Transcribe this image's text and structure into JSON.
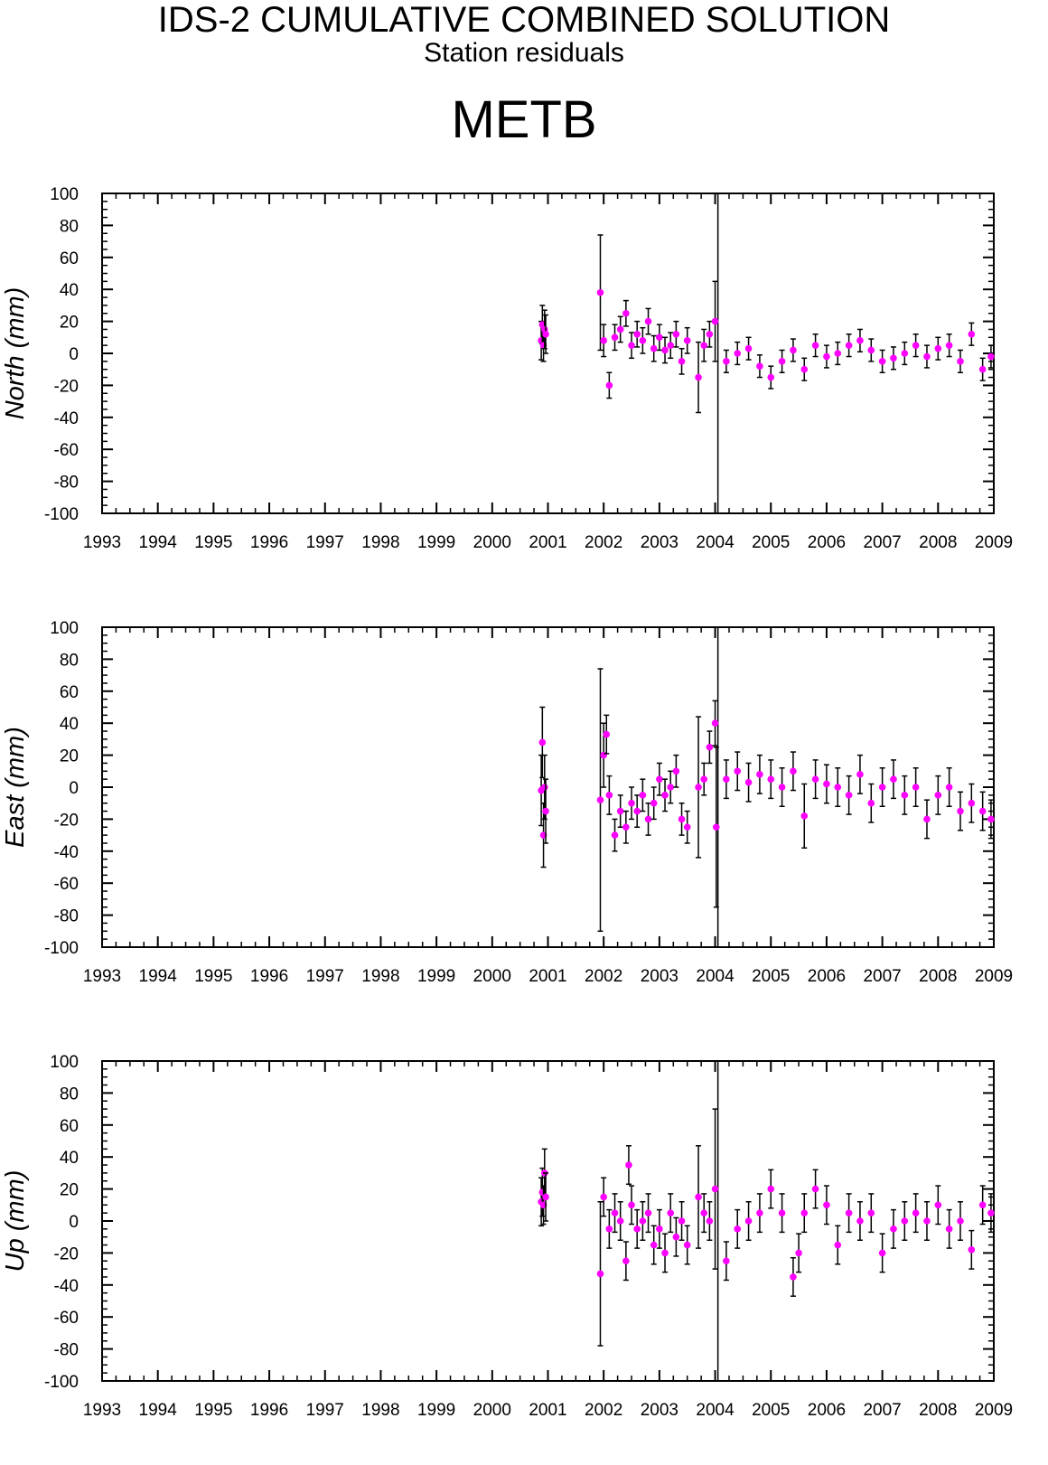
{
  "header": {
    "title": "IDS-2 CUMULATIVE COMBINED SOLUTION",
    "subtitle": "Station residuals",
    "station": "METB"
  },
  "colors": {
    "points": "#ff00ff",
    "errorbars": "#000000",
    "axes": "#000000"
  },
  "chart_data": [
    {
      "type": "scatter",
      "ylabel": "North (mm)",
      "xlim": [
        1993,
        2009
      ],
      "ylim": [
        -100,
        100
      ],
      "x_ticks": [
        1993,
        1994,
        1995,
        1996,
        1997,
        1998,
        1999,
        2000,
        2001,
        2002,
        2003,
        2004,
        2005,
        2006,
        2007,
        2008,
        2009
      ],
      "y_ticks": [
        100,
        80,
        60,
        40,
        20,
        0,
        -20,
        -40,
        -60,
        -80,
        -100
      ],
      "discontinuity_x": 2004.05,
      "error_bars": true,
      "grid": false,
      "series": [
        {
          "x": [
            2000.88,
            2000.9,
            2000.92,
            2000.94,
            2000.96,
            2001.94,
            2002.0,
            2002.1,
            2002.2,
            2002.3,
            2002.4,
            2002.5,
            2002.6,
            2002.7,
            2002.8,
            2002.9,
            2003.0,
            2003.1,
            2003.2,
            2003.3,
            2003.4,
            2003.5,
            2003.7,
            2003.8,
            2003.9,
            2004.0,
            2004.2,
            2004.4,
            2004.6,
            2004.8,
            2005.0,
            2005.2,
            2005.4,
            2005.6,
            2005.8,
            2006.0,
            2006.2,
            2006.4,
            2006.6,
            2006.8,
            2007.0,
            2007.2,
            2007.4,
            2007.6,
            2007.8,
            2008.0,
            2008.2,
            2008.4,
            2008.6,
            2008.8,
            2008.95
          ],
          "y": [
            8,
            18,
            5,
            15,
            12,
            38,
            8,
            -20,
            10,
            15,
            25,
            5,
            12,
            8,
            20,
            3,
            10,
            2,
            5,
            12,
            -5,
            8,
            -15,
            5,
            12,
            20,
            -5,
            0,
            3,
            -8,
            -15,
            -5,
            2,
            -10,
            5,
            -2,
            0,
            5,
            8,
            2,
            -5,
            -3,
            0,
            5,
            -2,
            3,
            5,
            -5,
            12,
            -10,
            -2
          ],
          "err": [
            12,
            12,
            10,
            12,
            12,
            36,
            10,
            8,
            8,
            8,
            8,
            8,
            8,
            8,
            8,
            8,
            8,
            8,
            8,
            8,
            8,
            8,
            22,
            10,
            8,
            25,
            7,
            7,
            7,
            7,
            7,
            7,
            7,
            7,
            7,
            7,
            7,
            7,
            7,
            7,
            7,
            7,
            7,
            7,
            7,
            7,
            7,
            7,
            7,
            7,
            7
          ]
        }
      ]
    },
    {
      "type": "scatter",
      "ylabel": "East (mm)",
      "xlim": [
        1993,
        2009
      ],
      "ylim": [
        -100,
        100
      ],
      "x_ticks": [
        1993,
        1994,
        1995,
        1996,
        1997,
        1998,
        1999,
        2000,
        2001,
        2002,
        2003,
        2004,
        2005,
        2006,
        2007,
        2008,
        2009
      ],
      "y_ticks": [
        100,
        80,
        60,
        40,
        20,
        0,
        -20,
        -40,
        -60,
        -80,
        -100
      ],
      "discontinuity_x": 2004.05,
      "error_bars": true,
      "grid": false,
      "series": [
        {
          "x": [
            2000.88,
            2000.9,
            2000.92,
            2000.94,
            2000.96,
            2001.94,
            2002.0,
            2002.05,
            2002.1,
            2002.2,
            2002.3,
            2002.4,
            2002.5,
            2002.6,
            2002.7,
            2002.8,
            2002.9,
            2003.0,
            2003.1,
            2003.2,
            2003.3,
            2003.4,
            2003.5,
            2003.7,
            2003.8,
            2003.9,
            2004.0,
            2004.02,
            2004.2,
            2004.4,
            2004.6,
            2004.8,
            2005.0,
            2005.2,
            2005.4,
            2005.6,
            2005.8,
            2006.0,
            2006.2,
            2006.4,
            2006.6,
            2006.8,
            2007.0,
            2007.2,
            2007.4,
            2007.6,
            2007.8,
            2008.0,
            2008.2,
            2008.4,
            2008.6,
            2008.8,
            2008.95
          ],
          "y": [
            -2,
            28,
            -30,
            0,
            -15,
            -8,
            20,
            33,
            -5,
            -30,
            -15,
            -25,
            -10,
            -15,
            -5,
            -20,
            -10,
            5,
            -5,
            0,
            10,
            -20,
            -25,
            0,
            5,
            25,
            40,
            -25,
            5,
            10,
            3,
            8,
            5,
            0,
            10,
            -18,
            5,
            2,
            0,
            -5,
            8,
            -10,
            0,
            5,
            -5,
            0,
            -20,
            -5,
            0,
            -15,
            -10,
            -15,
            -20
          ],
          "err": [
            22,
            22,
            20,
            20,
            20,
            82,
            20,
            12,
            12,
            10,
            10,
            10,
            10,
            10,
            10,
            10,
            10,
            10,
            10,
            10,
            10,
            10,
            10,
            44,
            10,
            10,
            14,
            50,
            12,
            12,
            12,
            12,
            12,
            12,
            12,
            20,
            12,
            12,
            12,
            12,
            12,
            12,
            12,
            12,
            12,
            12,
            12,
            12,
            12,
            12,
            12,
            12,
            12
          ]
        }
      ]
    },
    {
      "type": "scatter",
      "ylabel": "Up (mm)",
      "xlim": [
        1993,
        2009
      ],
      "ylim": [
        -100,
        100
      ],
      "x_ticks": [
        1993,
        1994,
        1995,
        1996,
        1997,
        1998,
        1999,
        2000,
        2001,
        2002,
        2003,
        2004,
        2005,
        2006,
        2007,
        2008,
        2009
      ],
      "y_ticks": [
        100,
        80,
        60,
        40,
        20,
        0,
        -20,
        -40,
        -60,
        -80,
        -100
      ],
      "discontinuity_x": 2004.05,
      "error_bars": true,
      "grid": false,
      "series": [
        {
          "x": [
            2000.88,
            2000.9,
            2000.92,
            2000.94,
            2000.96,
            2001.94,
            2002.0,
            2002.1,
            2002.2,
            2002.3,
            2002.4,
            2002.45,
            2002.5,
            2002.6,
            2002.7,
            2002.8,
            2002.9,
            2003.0,
            2003.1,
            2003.2,
            2003.3,
            2003.4,
            2003.5,
            2003.7,
            2003.8,
            2003.9,
            2004.0,
            2004.2,
            2004.4,
            2004.6,
            2004.8,
            2005.0,
            2005.2,
            2005.4,
            2005.5,
            2005.6,
            2005.8,
            2006.0,
            2006.2,
            2006.4,
            2006.6,
            2006.8,
            2007.0,
            2007.2,
            2007.4,
            2007.6,
            2007.8,
            2008.0,
            2008.2,
            2008.4,
            2008.6,
            2008.8,
            2008.95
          ],
          "y": [
            12,
            18,
            10,
            30,
            15,
            -33,
            15,
            -5,
            5,
            0,
            -25,
            35,
            10,
            -5,
            0,
            5,
            -15,
            -5,
            -20,
            5,
            -10,
            0,
            -15,
            15,
            5,
            0,
            20,
            -25,
            -5,
            0,
            5,
            20,
            5,
            -35,
            -20,
            5,
            20,
            10,
            -15,
            5,
            0,
            5,
            -20,
            -5,
            0,
            5,
            0,
            10,
            -5,
            0,
            -18,
            10,
            5
          ],
          "err": [
            15,
            15,
            12,
            15,
            15,
            45,
            12,
            12,
            12,
            12,
            12,
            12,
            12,
            12,
            12,
            12,
            12,
            12,
            12,
            12,
            12,
            12,
            12,
            32,
            12,
            12,
            50,
            12,
            12,
            12,
            12,
            12,
            12,
            12,
            12,
            12,
            12,
            12,
            12,
            12,
            12,
            12,
            12,
            12,
            12,
            12,
            12,
            12,
            12,
            12,
            12,
            12,
            12
          ]
        }
      ]
    }
  ]
}
